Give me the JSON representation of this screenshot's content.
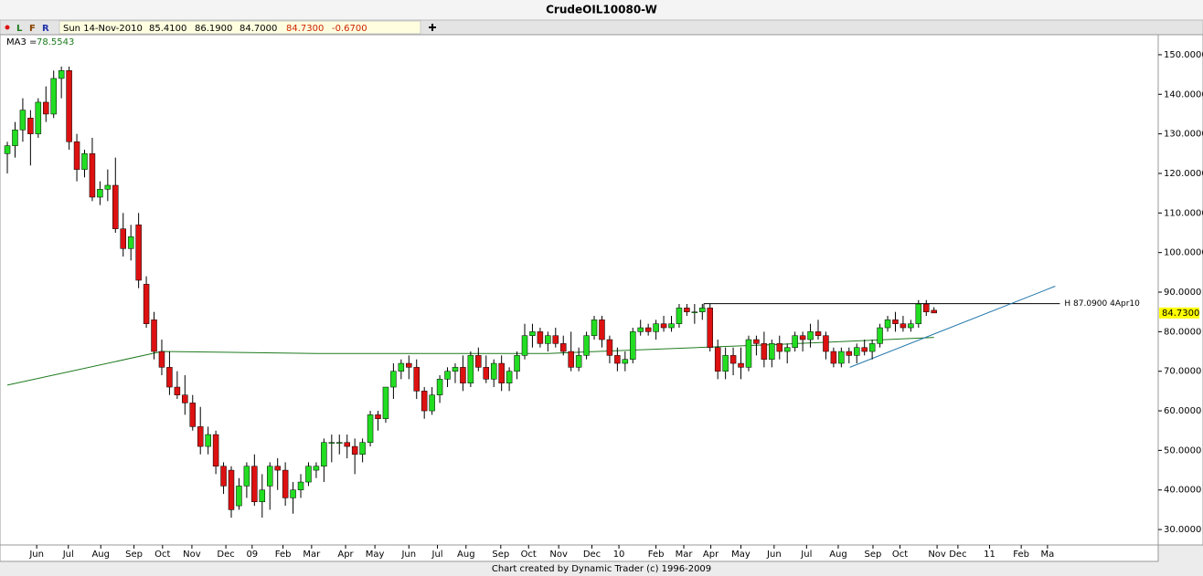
{
  "chart_data": {
    "type": "candlestick",
    "title": "CrudeOIL10080-W",
    "toolbar": [
      "L",
      "F",
      "R"
    ],
    "header": {
      "date": "Sun 14-Nov-2010",
      "values": [
        85.41,
        86.19,
        84.7,
        84.73,
        -0.67
      ],
      "value_labels": [
        "85.4100",
        "86.1900",
        "84.7000",
        "84.7300",
        "-0.6700"
      ]
    },
    "ma": {
      "name": "MA3 =",
      "value": 78.5543,
      "value_label": "78.5543",
      "color": "#1e7a1e",
      "x": [
        0,
        20,
        40,
        70,
        100,
        120
      ],
      "values": [
        66.5,
        75,
        74.5,
        74.5,
        76.8,
        78.5543
      ]
    },
    "up_color": "#22dd22",
    "down_color": "#dd1111",
    "candles": [
      [
        125,
        128,
        120,
        127
      ],
      [
        127,
        133,
        124,
        131
      ],
      [
        131,
        139,
        128,
        136
      ],
      [
        134,
        136,
        122,
        130
      ],
      [
        130,
        139,
        129,
        138
      ],
      [
        138,
        142,
        133,
        135
      ],
      [
        135,
        146,
        134,
        144
      ],
      [
        144,
        147,
        139,
        146
      ],
      [
        146,
        147,
        126,
        128
      ],
      [
        128,
        130,
        118,
        121
      ],
      [
        121,
        126,
        119,
        125
      ],
      [
        125,
        129,
        113,
        114
      ],
      [
        114,
        118,
        112,
        116
      ],
      [
        116,
        121,
        113,
        117
      ],
      [
        117,
        124,
        105,
        106
      ],
      [
        106,
        110,
        99,
        101
      ],
      [
        101,
        107,
        98,
        104
      ],
      [
        107,
        110,
        91,
        93
      ],
      [
        92,
        94,
        81,
        82
      ],
      [
        83,
        85,
        73,
        75
      ],
      [
        75,
        78,
        69,
        71
      ],
      [
        71,
        75,
        64,
        66
      ],
      [
        66,
        70,
        63,
        64
      ],
      [
        64,
        69,
        59,
        62
      ],
      [
        62,
        64,
        55,
        56
      ],
      [
        56,
        61,
        49,
        51
      ],
      [
        51,
        56,
        49,
        54
      ],
      [
        54,
        55,
        44,
        46
      ],
      [
        46,
        47,
        39,
        41
      ],
      [
        45,
        46,
        33,
        35
      ],
      [
        36,
        43,
        35,
        41
      ],
      [
        41,
        47,
        38,
        46
      ],
      [
        46,
        49,
        36,
        37
      ],
      [
        37,
        44,
        33,
        40
      ],
      [
        41,
        47,
        35,
        46
      ],
      [
        46,
        48,
        40,
        45
      ],
      [
        45,
        47,
        36,
        38
      ],
      [
        38,
        42,
        34,
        40
      ],
      [
        40,
        44,
        38,
        42
      ],
      [
        42,
        47,
        41,
        46
      ],
      [
        45,
        47,
        43,
        46
      ],
      [
        46,
        53,
        42,
        52
      ],
      [
        52,
        54,
        47,
        52
      ],
      [
        52,
        54,
        49,
        52
      ],
      [
        52,
        54,
        48,
        51
      ],
      [
        51,
        53,
        44,
        49
      ],
      [
        49,
        53,
        47,
        52
      ],
      [
        52,
        60,
        51,
        59
      ],
      [
        59,
        60,
        55,
        58
      ],
      [
        58,
        66,
        57,
        66
      ],
      [
        66,
        72,
        63,
        70
      ],
      [
        70,
        73,
        68,
        72
      ],
      [
        72,
        74,
        68,
        71
      ],
      [
        71,
        73,
        63,
        65
      ],
      [
        65,
        66,
        58,
        60
      ],
      [
        60,
        66,
        59,
        64
      ],
      [
        64,
        69,
        62,
        68
      ],
      [
        68,
        71,
        66,
        70
      ],
      [
        70,
        72,
        67,
        71
      ],
      [
        71,
        74,
        65,
        67
      ],
      [
        67,
        75,
        66,
        74
      ],
      [
        74,
        76,
        70,
        71
      ],
      [
        71,
        74,
        67,
        68
      ],
      [
        68,
        73,
        66,
        72
      ],
      [
        72,
        74,
        65,
        67
      ],
      [
        67,
        71,
        65,
        70
      ],
      [
        70,
        75,
        68,
        74
      ],
      [
        74,
        82,
        73,
        79
      ],
      [
        79,
        82,
        76,
        80
      ],
      [
        80,
        81,
        76,
        77
      ],
      [
        77,
        80,
        75,
        79
      ],
      [
        79,
        81,
        76,
        77
      ],
      [
        77,
        79,
        74,
        75
      ],
      [
        75,
        80,
        70,
        71
      ],
      [
        71,
        76,
        70,
        74
      ],
      [
        74,
        80,
        73,
        79
      ],
      [
        79,
        84,
        78,
        83
      ],
      [
        83,
        84,
        76,
        78
      ],
      [
        78,
        79,
        72,
        74
      ],
      [
        74,
        76,
        70,
        72
      ],
      [
        72,
        75,
        70,
        73
      ],
      [
        73,
        81,
        72,
        80
      ],
      [
        80,
        83,
        79,
        81
      ],
      [
        81,
        82,
        79,
        80
      ],
      [
        80,
        83,
        78,
        82
      ],
      [
        82,
        84,
        80,
        81
      ],
      [
        81,
        84,
        80,
        82
      ],
      [
        82,
        87,
        81,
        86
      ],
      [
        86,
        87,
        84,
        85
      ],
      [
        85,
        87,
        82,
        85
      ],
      [
        85,
        87,
        83,
        86
      ],
      [
        86,
        87,
        75,
        76
      ],
      [
        76,
        78,
        68,
        70
      ],
      [
        70,
        76,
        68,
        74
      ],
      [
        74,
        76,
        69,
        72
      ],
      [
        72,
        76,
        68,
        71
      ],
      [
        71,
        79,
        70,
        78
      ],
      [
        78,
        79,
        74,
        77
      ],
      [
        77,
        80,
        71,
        73
      ],
      [
        73,
        78,
        71,
        77
      ],
      [
        77,
        79,
        73,
        75
      ],
      [
        75,
        77,
        72,
        76
      ],
      [
        76,
        80,
        75,
        79
      ],
      [
        79,
        80,
        75,
        78
      ],
      [
        78,
        82,
        76,
        80
      ],
      [
        80,
        83,
        78,
        79
      ],
      [
        79,
        80,
        73,
        75
      ],
      [
        75,
        76,
        71,
        72
      ],
      [
        72,
        76,
        71,
        75
      ],
      [
        75,
        76,
        72,
        74
      ],
      [
        74,
        77,
        72,
        76
      ],
      [
        76,
        78,
        74,
        75
      ],
      [
        75,
        78,
        73,
        77
      ],
      [
        77,
        82,
        76,
        81
      ],
      [
        81,
        84,
        80,
        83
      ],
      [
        83,
        85,
        80,
        82
      ],
      [
        82,
        84,
        80,
        81
      ],
      [
        81,
        83,
        80,
        82
      ],
      [
        82,
        88,
        81,
        87
      ],
      [
        87,
        88,
        84,
        85
      ],
      [
        85.41,
        86.19,
        84.7,
        84.73
      ]
    ],
    "xlim": [
      -0.95,
      148.8
    ],
    "xticks": [
      {
        "value": 3.8,
        "label": "Jun"
      },
      {
        "value": 7.9,
        "label": "Jul"
      },
      {
        "value": 12.1,
        "label": "Aug"
      },
      {
        "value": 16.4,
        "label": "Sep"
      },
      {
        "value": 20.1,
        "label": "Oct"
      },
      {
        "value": 23.9,
        "label": "Nov"
      },
      {
        "value": 28.3,
        "label": "Dec"
      },
      {
        "value": 31.7,
        "label": "09"
      },
      {
        "value": 35.7,
        "label": "Feb"
      },
      {
        "value": 39.4,
        "label": "Mar"
      },
      {
        "value": 43.8,
        "label": "Apr"
      },
      {
        "value": 47.6,
        "label": "May"
      },
      {
        "value": 52.0,
        "label": "Jun"
      },
      {
        "value": 55.7,
        "label": "Jul"
      },
      {
        "value": 59.4,
        "label": "Aug"
      },
      {
        "value": 63.9,
        "label": "Sep"
      },
      {
        "value": 67.5,
        "label": "Oct"
      },
      {
        "value": 71.4,
        "label": "Nov"
      },
      {
        "value": 75.7,
        "label": "Dec"
      },
      {
        "value": 79.2,
        "label": "10"
      },
      {
        "value": 84.0,
        "label": "Feb"
      },
      {
        "value": 87.6,
        "label": "Mar"
      },
      {
        "value": 91.1,
        "label": "Apr"
      },
      {
        "value": 95.0,
        "label": "May"
      },
      {
        "value": 99.3,
        "label": "Jun"
      },
      {
        "value": 103.5,
        "label": "Jul"
      },
      {
        "value": 107.6,
        "label": "Aug"
      },
      {
        "value": 112.1,
        "label": "Sep"
      },
      {
        "value": 115.6,
        "label": "Oct"
      },
      {
        "value": 120.4,
        "label": "Nov"
      },
      {
        "value": 123.1,
        "label": "Dec"
      },
      {
        "value": 127.2,
        "label": "11"
      },
      {
        "value": 131.3,
        "label": "Feb"
      },
      {
        "value": 134.7,
        "label": "Ma"
      }
    ],
    "ylim": [
      26.1,
      154.6
    ],
    "yticks": [
      {
        "value": 30,
        "label": "30.0000"
      },
      {
        "value": 40,
        "label": "40.0000"
      },
      {
        "value": 50,
        "label": "50.0000"
      },
      {
        "value": 60,
        "label": "60.0000"
      },
      {
        "value": 70,
        "label": "70.0000"
      },
      {
        "value": 80,
        "label": "80.0000"
      },
      {
        "value": 90,
        "label": "90.0000"
      },
      {
        "value": 100,
        "label": "100.0000"
      },
      {
        "value": 110,
        "label": "110.0000"
      },
      {
        "value": 120,
        "label": "120.0000"
      },
      {
        "value": 130,
        "label": "130.0000"
      },
      {
        "value": 140,
        "label": "140.0000"
      },
      {
        "value": 150,
        "label": "150.0000"
      }
    ],
    "last_price": {
      "value": 84.73,
      "label": "84.7300"
    },
    "high_line": {
      "label": "H 87.0900 4Apr10",
      "value": 87.09,
      "x": [
        90.2,
        136.3
      ]
    },
    "trend_line": {
      "color": "#2277aa",
      "x": [
        109.1,
        135.7
      ],
      "values": [
        71,
        91.5
      ]
    },
    "footer": "Chart created by Dynamic Trader  (c) 1996-2009"
  }
}
